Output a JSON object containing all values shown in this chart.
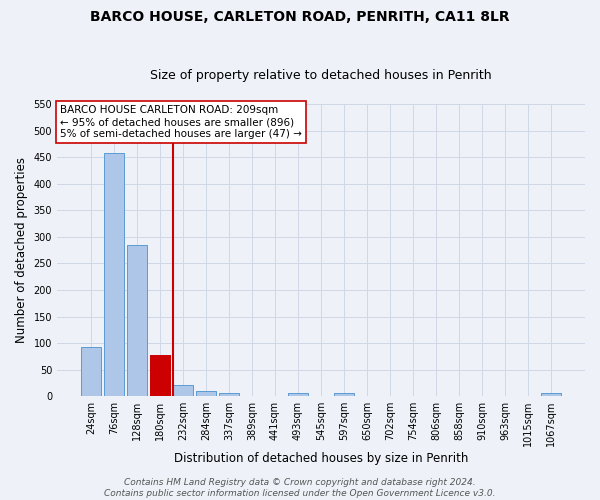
{
  "title": "BARCO HOUSE, CARLETON ROAD, PENRITH, CA11 8LR",
  "subtitle": "Size of property relative to detached houses in Penrith",
  "xlabel": "Distribution of detached houses by size in Penrith",
  "ylabel": "Number of detached properties",
  "bar_labels": [
    "24sqm",
    "76sqm",
    "128sqm",
    "180sqm",
    "232sqm",
    "284sqm",
    "337sqm",
    "389sqm",
    "441sqm",
    "493sqm",
    "545sqm",
    "597sqm",
    "650sqm",
    "702sqm",
    "754sqm",
    "806sqm",
    "858sqm",
    "910sqm",
    "963sqm",
    "1015sqm",
    "1067sqm"
  ],
  "bar_values": [
    93,
    458,
    285,
    78,
    22,
    10,
    6,
    0,
    0,
    6,
    0,
    6,
    0,
    0,
    0,
    0,
    0,
    0,
    0,
    0,
    6
  ],
  "bar_color": "#aec6e8",
  "bar_edge_color": "#5b9bd5",
  "highlight_idx": 3,
  "highlight_color": "#cc0000",
  "red_line_x": 3.56,
  "annotation_text": "BARCO HOUSE CARLETON ROAD: 209sqm\n← 95% of detached houses are smaller (896)\n5% of semi-detached houses are larger (47) →",
  "annotation_box_color": "#ffffff",
  "annotation_box_edge": "#cc0000",
  "ylim": [
    0,
    550
  ],
  "yticks": [
    0,
    50,
    100,
    150,
    200,
    250,
    300,
    350,
    400,
    450,
    500,
    550
  ],
  "grid_color": "#d0d8e8",
  "background_color": "#eef2f8",
  "footer_text": "Contains HM Land Registry data © Crown copyright and database right 2024.\nContains public sector information licensed under the Open Government Licence v3.0.",
  "title_fontsize": 10,
  "subtitle_fontsize": 9,
  "xlabel_fontsize": 8.5,
  "ylabel_fontsize": 8.5,
  "tick_fontsize": 7,
  "annotation_fontsize": 7.5,
  "footer_fontsize": 6.5
}
